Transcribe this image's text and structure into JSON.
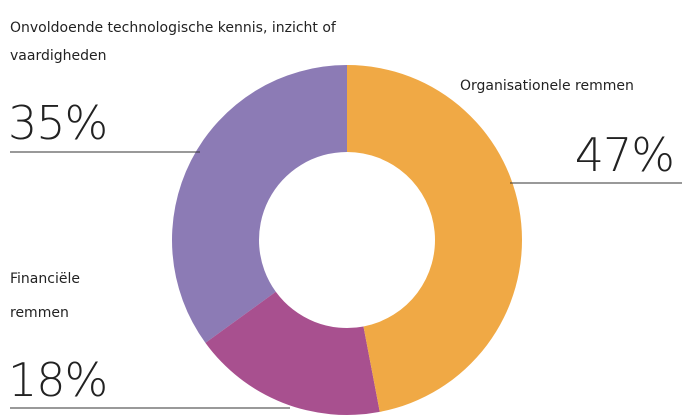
{
  "chart_data": {
    "type": "donut",
    "categories": [
      "Organisationele remmen",
      "Financiële remmen",
      "Onvoldoende technologische kennis, inzicht of vaardigheden"
    ],
    "values": [
      47,
      18,
      35
    ],
    "value_labels": [
      "47%",
      "18%",
      "35%"
    ],
    "colors": [
      "#f0a945",
      "#a8508f",
      "#8c7bb5"
    ]
  }
}
